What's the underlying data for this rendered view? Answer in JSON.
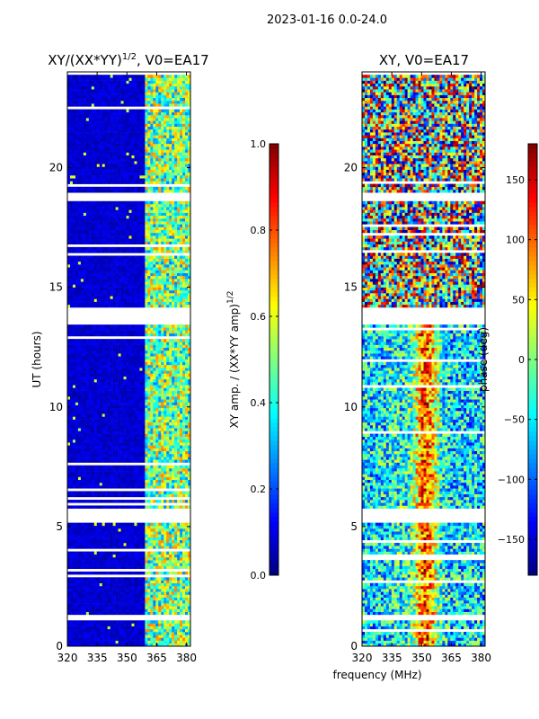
{
  "chart_data": {
    "suptitle": "2023-01-16 0.0-24.0",
    "shared_xlabel": "frequency (MHz)",
    "panels": [
      {
        "type": "heatmap",
        "title_main": "XY/(XX*YY)",
        "title_sup": "1/2",
        "title_tail": ", V0=EA17",
        "ylabel": "UT (hours)",
        "xlim": [
          320,
          382
        ],
        "ylim": [
          0,
          24
        ],
        "xticks": [
          320,
          335,
          350,
          365,
          380
        ],
        "yticks": [
          0,
          5,
          10,
          15,
          20
        ],
        "colorbar": {
          "label_main": "XY amp. / (XX*YY amp)",
          "label_sup": "1/2",
          "range": [
            0.0,
            1.0
          ],
          "ticks": [
            "0.0",
            "0.2",
            "0.4",
            "0.6",
            "0.8",
            "1.0"
          ],
          "tick_values": [
            0.0,
            0.2,
            0.4,
            0.6,
            0.8,
            1.0
          ],
          "colormap": "jet"
        },
        "blank_bands_hours": [
          [
            0.0,
            0.05
          ],
          [
            1.1,
            1.3
          ],
          [
            5.2,
            5.7
          ],
          [
            13.5,
            14.2
          ],
          [
            18.6,
            19.0
          ],
          [
            23.9,
            24.0
          ]
        ]
      },
      {
        "type": "heatmap",
        "title_main": "XY, V0=EA17",
        "ylabel": "",
        "xlim": [
          320,
          382
        ],
        "ylim": [
          0,
          24
        ],
        "xticks": [
          320,
          335,
          350,
          365,
          380
        ],
        "yticks": [
          0,
          5,
          10,
          15,
          20
        ],
        "colorbar": {
          "label_main": "phase (deg)",
          "range": [
            -180,
            180
          ],
          "ticks": [
            "−150",
            "−100",
            "−50",
            "0",
            "50",
            "100",
            "150"
          ],
          "tick_values": [
            -150,
            -100,
            -50,
            0,
            50,
            100,
            150
          ],
          "colormap": "jet"
        },
        "blank_bands_hours": [
          [
            0.0,
            0.05
          ],
          [
            1.1,
            1.3
          ],
          [
            5.2,
            5.7
          ],
          [
            13.5,
            14.2
          ],
          [
            18.6,
            19.0
          ],
          [
            23.9,
            24.0
          ]
        ]
      }
    ]
  }
}
